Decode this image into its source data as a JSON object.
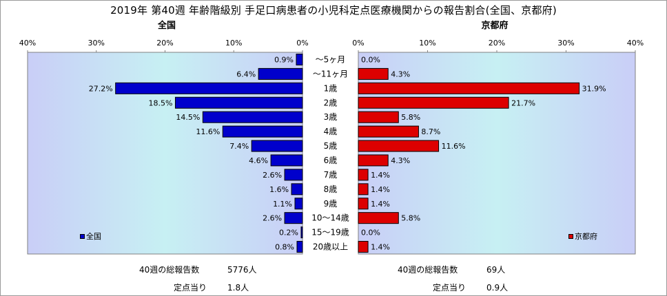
{
  "title": "2019年 第40週 年齢階級別 手足口病患者の小児科定点医療機関からの報告割合(全国、京都府)",
  "chart_data": {
    "type": "bar",
    "orientation": "horizontal-butterfly",
    "categories": [
      "～5ヶ月",
      "～11ヶ月",
      "1歳",
      "2歳",
      "3歳",
      "4歳",
      "5歳",
      "6歳",
      "7歳",
      "8歳",
      "9歳",
      "10～14歳",
      "15～19歳",
      "20歳以上"
    ],
    "tick_labels": [
      "0%",
      "10%",
      "20%",
      "30%",
      "40%"
    ],
    "xlim": [
      0,
      40
    ],
    "grid": false,
    "series": [
      {
        "name": "全国",
        "panel_title": "全国",
        "color": "#0000cc",
        "side": "left",
        "values": [
          0.9,
          6.4,
          27.2,
          18.5,
          14.5,
          11.6,
          7.4,
          4.6,
          2.6,
          1.6,
          1.1,
          2.6,
          0.2,
          0.8
        ],
        "labels": [
          "0.9%",
          "6.4%",
          "27.2%",
          "18.5%",
          "14.5%",
          "11.6%",
          "7.4%",
          "4.6%",
          "2.6%",
          "1.6%",
          "1.1%",
          "2.6%",
          "0.2%",
          "0.8%"
        ],
        "legend_placement": "bottom-left"
      },
      {
        "name": "京都府",
        "panel_title": "京都府",
        "color": "#dd0000",
        "side": "right",
        "values": [
          0.0,
          4.3,
          31.9,
          21.7,
          5.8,
          8.7,
          11.6,
          4.3,
          1.4,
          1.4,
          1.4,
          5.8,
          0.0,
          1.4
        ],
        "labels": [
          "0.0%",
          "4.3%",
          "31.9%",
          "21.7%",
          "5.8%",
          "8.7%",
          "11.6%",
          "4.3%",
          "1.4%",
          "1.4%",
          "1.4%",
          "5.8%",
          "0.0%",
          "1.4%"
        ],
        "legend_placement": "bottom-right"
      }
    ]
  },
  "summary": {
    "national": {
      "total_label": "40週の総報告数",
      "total_value": "5776人",
      "per_label": "定点当り",
      "per_value": "1.8人"
    },
    "kyoto": {
      "total_label": "40週の総報告数",
      "total_value": "69人",
      "per_label": "定点当り",
      "per_value": "0.9人"
    }
  }
}
